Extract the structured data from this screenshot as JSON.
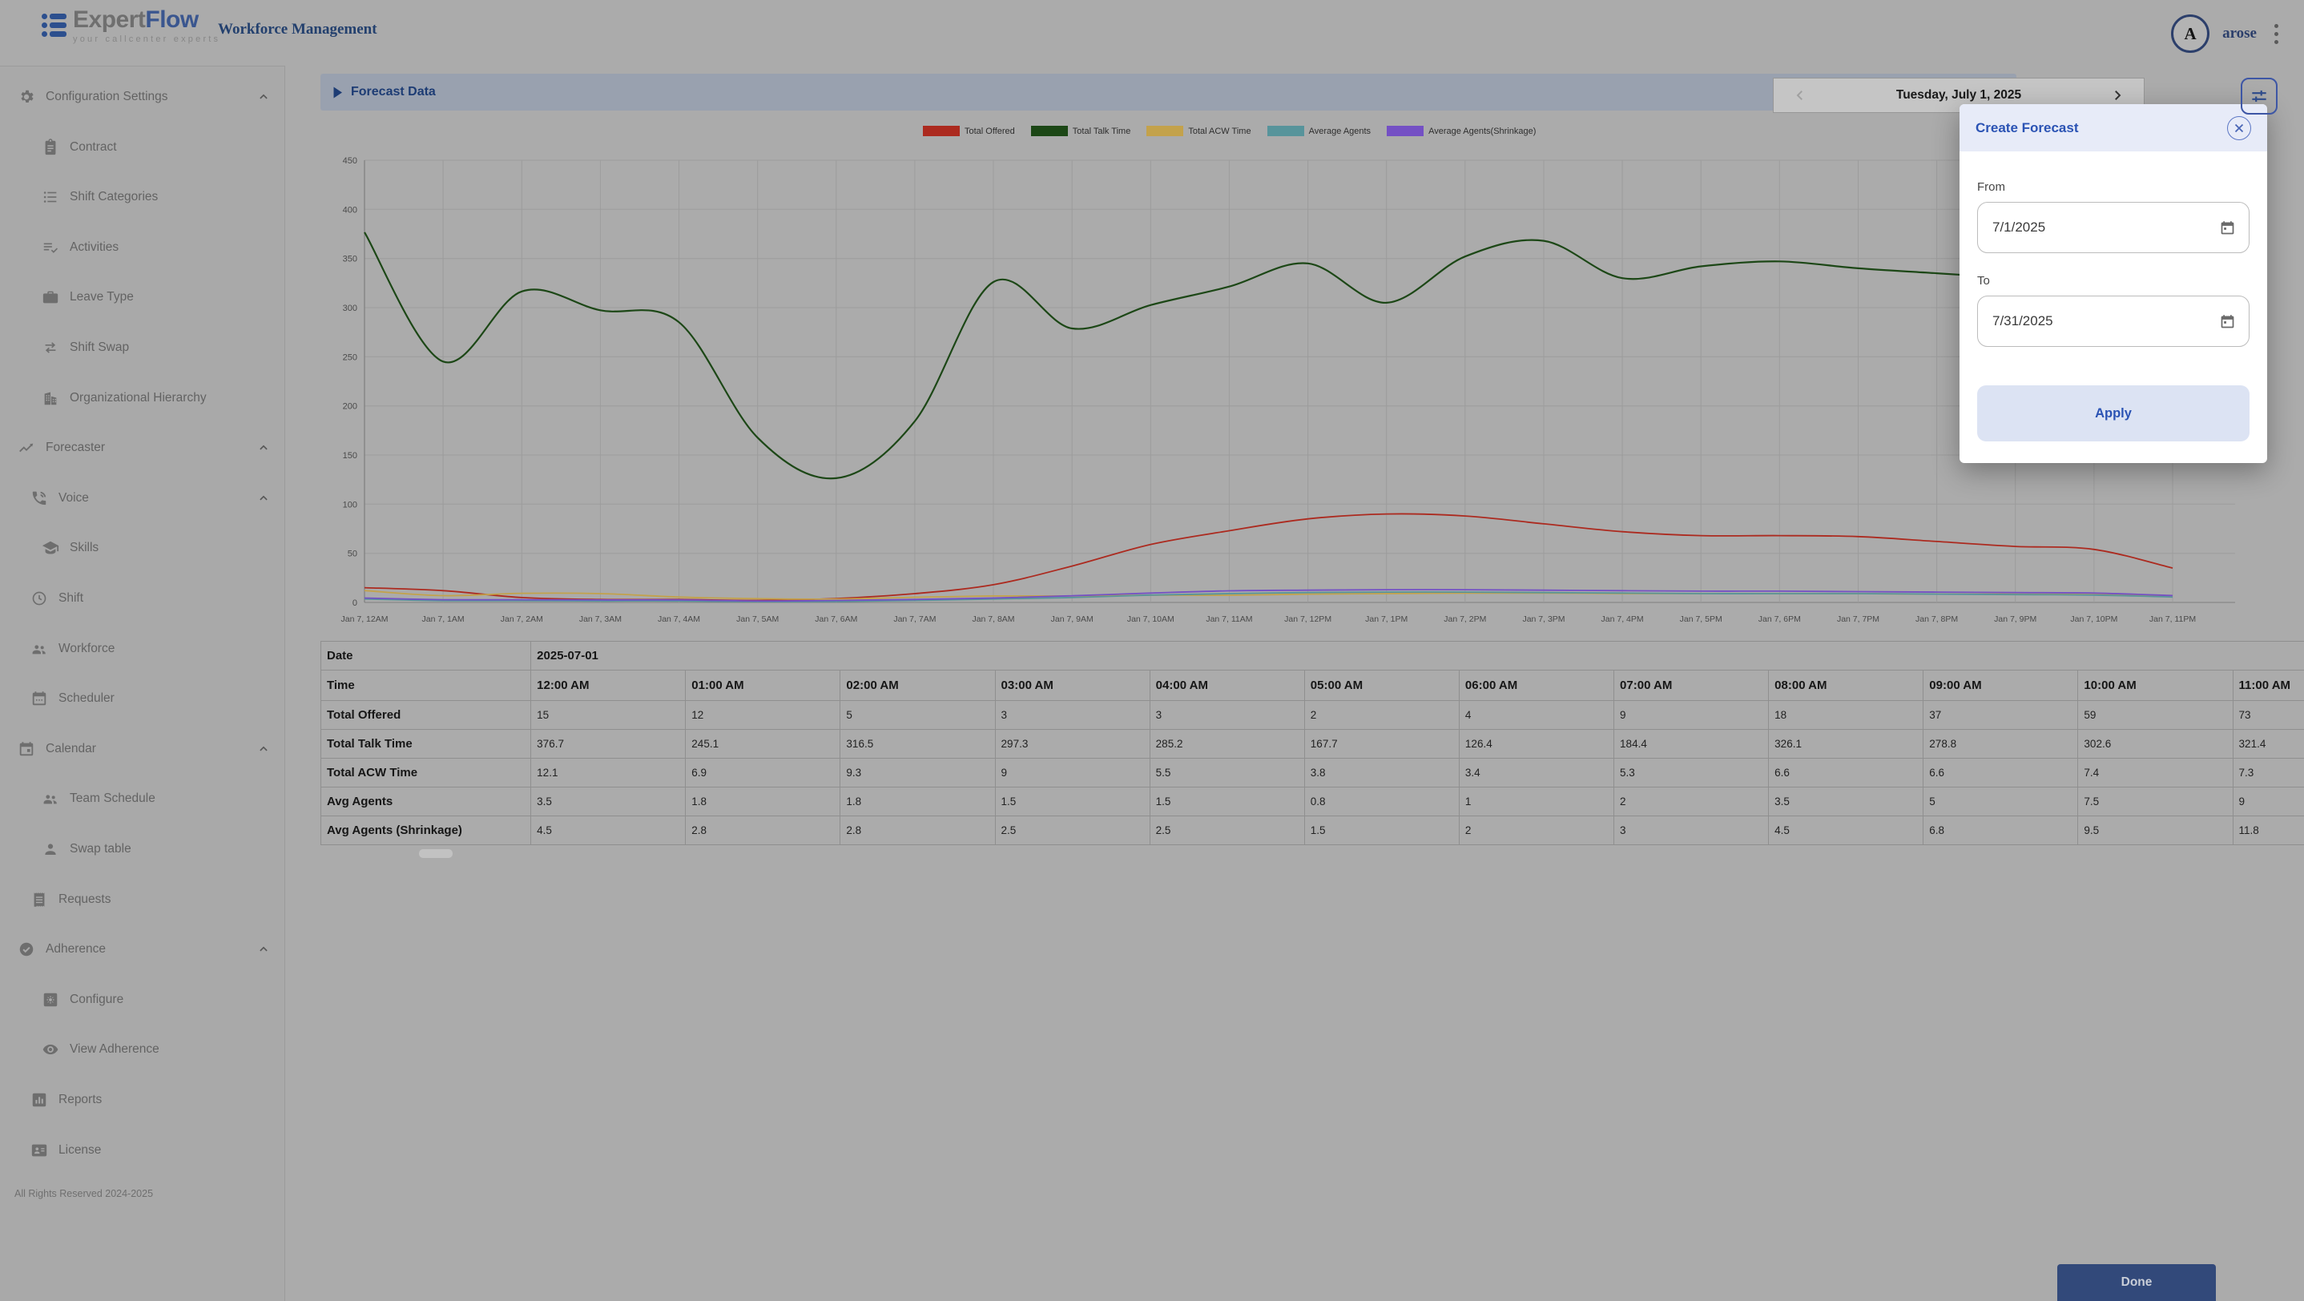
{
  "header": {
    "logo_expert": "Expert",
    "logo_flow": "Flow",
    "logo_tagline": "your callcenter experts",
    "app_title": "Workforce Management",
    "user_initial": "A",
    "username": "arose"
  },
  "sidebar": {
    "items": [
      {
        "label": "Configuration Settings",
        "icon": "gear-icon",
        "level": 1,
        "expandable": true
      },
      {
        "label": "Contract",
        "icon": "clipboard-icon",
        "level": 3,
        "expandable": false
      },
      {
        "label": "Shift Categories",
        "icon": "list-icon",
        "level": 3,
        "expandable": false
      },
      {
        "label": "Activities",
        "icon": "playlist-check-icon",
        "level": 3,
        "expandable": false
      },
      {
        "label": "Leave Type",
        "icon": "briefcase-icon",
        "level": 3,
        "expandable": false
      },
      {
        "label": "Shift Swap",
        "icon": "swap-arrows-icon",
        "level": 3,
        "expandable": false
      },
      {
        "label": "Organizational Hierarchy",
        "icon": "building-icon",
        "level": 3,
        "expandable": false
      },
      {
        "label": "Forecaster",
        "icon": "trending-up-icon",
        "level": 1,
        "expandable": true
      },
      {
        "label": "Voice",
        "icon": "phone-icon",
        "level": 2,
        "expandable": true
      },
      {
        "label": "Skills",
        "icon": "graduation-cap-icon",
        "level": 3,
        "expandable": false
      },
      {
        "label": "Shift",
        "icon": "clock-icon",
        "level": 2,
        "expandable": false
      },
      {
        "label": "Workforce",
        "icon": "people-icon",
        "level": 2,
        "expandable": false
      },
      {
        "label": "Scheduler",
        "icon": "calendar-icon",
        "level": 2,
        "expandable": false
      },
      {
        "label": "Calendar",
        "icon": "calendar-today-icon",
        "level": 1,
        "expandable": true
      },
      {
        "label": "Team Schedule",
        "icon": "people-icon",
        "level": 3,
        "expandable": false
      },
      {
        "label": "Swap table",
        "icon": "person-icon",
        "level": 3,
        "expandable": false
      },
      {
        "label": "Requests",
        "icon": "receipt-icon",
        "level": 2,
        "expandable": false
      },
      {
        "label": "Adherence",
        "icon": "check-circle-icon",
        "level": 1,
        "expandable": true
      },
      {
        "label": "Configure",
        "icon": "settings-box-icon",
        "level": 3,
        "expandable": false
      },
      {
        "label": "View Adherence",
        "icon": "eye-icon",
        "level": 3,
        "expandable": false
      },
      {
        "label": "Reports",
        "icon": "bar-chart-icon",
        "level": 2,
        "expandable": false
      },
      {
        "label": "License",
        "icon": "badge-icon",
        "level": 2,
        "expandable": false
      }
    ],
    "footer": "All Rights Reserved 2024-2025"
  },
  "toolbar": {
    "section_title": "Forecast Data",
    "date_label": "Tuesday, July 1, 2025"
  },
  "chart_data": {
    "type": "line",
    "title": "",
    "xlabel": "",
    "ylabel": "",
    "ylim": [
      0,
      450
    ],
    "ytick": 50,
    "grid": true,
    "legend_position": "top",
    "x": [
      "Jan 7, 12AM",
      "Jan 7, 1AM",
      "Jan 7, 2AM",
      "Jan 7, 3AM",
      "Jan 7, 4AM",
      "Jan 7, 5AM",
      "Jan 7, 6AM",
      "Jan 7, 7AM",
      "Jan 7, 8AM",
      "Jan 7, 9AM",
      "Jan 7, 10AM",
      "Jan 7, 11AM",
      "Jan 7, 12PM",
      "Jan 7, 1PM",
      "Jan 7, 2PM",
      "Jan 7, 3PM",
      "Jan 7, 4PM",
      "Jan 7, 5PM",
      "Jan 7, 6PM",
      "Jan 7, 7PM",
      "Jan 7, 8PM",
      "Jan 7, 9PM",
      "Jan 7, 10PM",
      "Jan 7, 11PM"
    ],
    "series": [
      {
        "name": "Total Offered",
        "color": "#ac2a1f",
        "values": [
          15,
          12,
          5,
          3,
          3,
          2,
          4,
          9,
          18,
          37,
          59,
          73,
          85,
          90,
          88,
          80,
          72,
          68,
          68,
          67,
          62,
          57,
          54,
          35
        ]
      },
      {
        "name": "Total Talk Time",
        "color": "#1c4716",
        "values": [
          376.7,
          245.1,
          316.5,
          297.3,
          285.2,
          167.7,
          126.4,
          184.4,
          326.1,
          278.8,
          302.6,
          321.4,
          345,
          305,
          352,
          368,
          330,
          342,
          347,
          340,
          335,
          330,
          326,
          320
        ]
      },
      {
        "name": "Total ACW Time",
        "color": "#c3a24b",
        "values": [
          12.1,
          6.9,
          9.3,
          9,
          5.5,
          3.8,
          3.4,
          5.3,
          6.6,
          6.6,
          7.4,
          7.3,
          8.5,
          9,
          9.5,
          9.5,
          9,
          9,
          9,
          9,
          8.5,
          8.5,
          8,
          7
        ]
      },
      {
        "name": "Average Agents",
        "color": "#57949b",
        "values": [
          3.5,
          1.8,
          1.8,
          1.5,
          1.5,
          0.8,
          1,
          2,
          3.5,
          5,
          7.5,
          9,
          10,
          10.5,
          10.5,
          10,
          9.5,
          9,
          9,
          9,
          8.5,
          8,
          7.5,
          5.5
        ]
      },
      {
        "name": "Average Agents(Shrinkage)",
        "color": "#7450c4",
        "values": [
          4.5,
          2.8,
          2.8,
          2.5,
          2.5,
          1.5,
          2,
          3,
          4.5,
          6.8,
          9.5,
          11.8,
          12.5,
          13,
          13,
          12.5,
          12,
          11.5,
          11.5,
          11,
          10.5,
          10,
          9.5,
          7
        ]
      }
    ]
  },
  "table": {
    "date_label": "Date",
    "date_value": "2025-07-01",
    "time_label": "Time",
    "times": [
      "12:00 AM",
      "01:00 AM",
      "02:00 AM",
      "03:00 AM",
      "04:00 AM",
      "05:00 AM",
      "06:00 AM",
      "07:00 AM",
      "08:00 AM",
      "09:00 AM",
      "10:00 AM",
      "11:00 AM"
    ],
    "rows": [
      {
        "label": "Total Offered",
        "values": [
          "15",
          "12",
          "5",
          "3",
          "3",
          "2",
          "4",
          "9",
          "18",
          "37",
          "59",
          "73"
        ]
      },
      {
        "label": "Total Talk Time",
        "values": [
          "376.7",
          "245.1",
          "316.5",
          "297.3",
          "285.2",
          "167.7",
          "126.4",
          "184.4",
          "326.1",
          "278.8",
          "302.6",
          "321.4"
        ]
      },
      {
        "label": "Total ACW Time",
        "values": [
          "12.1",
          "6.9",
          "9.3",
          "9",
          "5.5",
          "3.8",
          "3.4",
          "5.3",
          "6.6",
          "6.6",
          "7.4",
          "7.3"
        ]
      },
      {
        "label": "Avg Agents",
        "values": [
          "3.5",
          "1.8",
          "1.8",
          "1.5",
          "1.5",
          "0.8",
          "1",
          "2",
          "3.5",
          "5",
          "7.5",
          "9"
        ]
      },
      {
        "label": "Avg Agents (Shrinkage)",
        "values": [
          "4.5",
          "2.8",
          "2.8",
          "2.5",
          "2.5",
          "1.5",
          "2",
          "3",
          "4.5",
          "6.8",
          "9.5",
          "11.8"
        ]
      }
    ]
  },
  "dialog": {
    "title": "Create Forecast",
    "from_label": "From",
    "from_value": "7/1/2025",
    "to_label": "To",
    "to_value": "7/31/2025",
    "apply_label": "Apply"
  },
  "footer": {
    "done_label": "Done"
  },
  "colors": {
    "dialog_accent": "#2b53b4",
    "done_button": "#32497a",
    "section_bar": "#99a1af",
    "series_total_offered": "#ac2a1f",
    "series_total_talk_time": "#1c4716",
    "series_total_acw_time": "#c3a24b",
    "series_average_agents": "#57949b",
    "series_average_agents_shrinkage": "#7450c4"
  }
}
